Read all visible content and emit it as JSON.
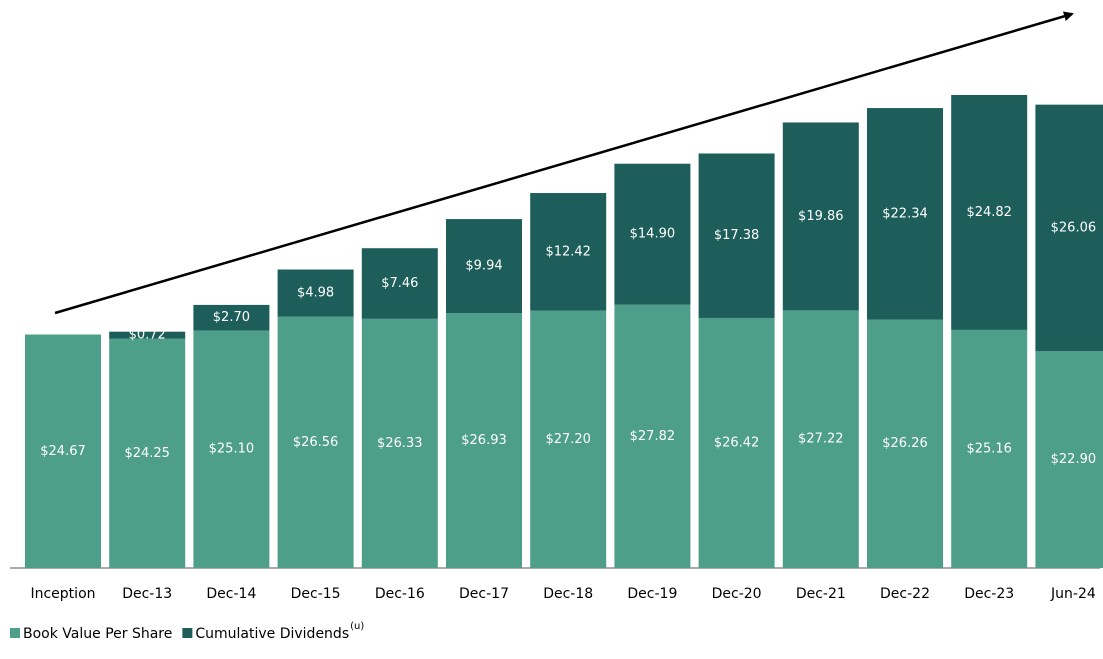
{
  "chart_data": {
    "type": "stacked_bar",
    "categories": [
      "Inception",
      "Dec-13",
      "Dec-14",
      "Dec-15",
      "Dec-16",
      "Dec-17",
      "Dec-18",
      "Dec-19",
      "Dec-20",
      "Dec-21",
      "Dec-22",
      "Dec-23",
      "Jun-24"
    ],
    "series": [
      {
        "name": "Book Value Per Share",
        "color": "#4e9f8a",
        "values": [
          24.67,
          24.25,
          25.1,
          26.56,
          26.33,
          26.93,
          27.2,
          27.82,
          26.42,
          27.22,
          26.26,
          25.16,
          22.9
        ],
        "value_labels": [
          "$24.67",
          "$24.25",
          "$25.10",
          "$26.56",
          "$26.33",
          "$26.93",
          "$27.20",
          "$27.82",
          "$26.42",
          "$27.22",
          "$26.26",
          "$25.16",
          "$22.90"
        ]
      },
      {
        "name": "Cumulative Dividends",
        "name_superscript": "(u)",
        "color": "#1d5e5a",
        "values": [
          null,
          0.72,
          2.7,
          4.98,
          7.46,
          9.94,
          12.42,
          14.9,
          17.38,
          19.86,
          22.34,
          24.82,
          26.06
        ],
        "value_labels": [
          null,
          "$0.72",
          "$2.70",
          "$4.98",
          "$7.46",
          "$9.94",
          "$12.42",
          "$14.90",
          "$17.38",
          "$19.86",
          "$22.34",
          "$24.82",
          "$26.06"
        ]
      }
    ]
  }
}
